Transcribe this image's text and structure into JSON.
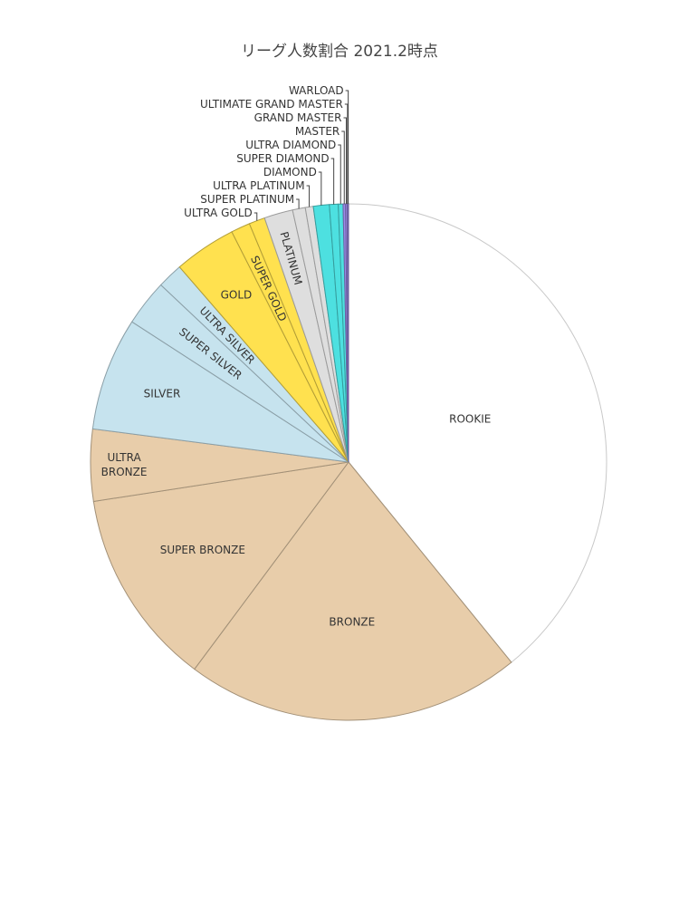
{
  "chart_data": {
    "type": "pie",
    "title": "リーグ人数割合 2021.2時点",
    "direction": "clockwise",
    "start": "12 o'clock",
    "slices": [
      {
        "label": "ROOKIE",
        "value": 39.2,
        "color": "#ffffff"
      },
      {
        "label": "BRONZE",
        "value": 21.1,
        "color": "#e8cdaa"
      },
      {
        "label": "SUPER BRONZE",
        "value": 12.4,
        "color": "#e8cdaa"
      },
      {
        "label": "ULTRA BRONZE",
        "value": 4.5,
        "color": "#e8cdaa"
      },
      {
        "label": "SILVER",
        "value": 7.1,
        "color": "#c6e3ee"
      },
      {
        "label": "SUPER SILVER",
        "value": 2.9,
        "color": "#c6e3ee"
      },
      {
        "label": "ULTRA SILVER",
        "value": 1.6,
        "color": "#c6e3ee"
      },
      {
        "label": "GOLD",
        "value": 3.9,
        "color": "#ffe14f"
      },
      {
        "label": "SUPER GOLD",
        "value": 1.2,
        "color": "#ffe14f"
      },
      {
        "label": "ULTRA GOLD",
        "value": 1.0,
        "color": "#ffe14f"
      },
      {
        "label": "PLATINUM",
        "value": 1.8,
        "color": "#dedede"
      },
      {
        "label": "SUPER PLATINUM",
        "value": 0.8,
        "color": "#dedede"
      },
      {
        "label": "ULTRA PLATINUM",
        "value": 0.5,
        "color": "#dedede"
      },
      {
        "label": "DIAMOND",
        "value": 1.0,
        "color": "#4de0e0"
      },
      {
        "label": "SUPER DIAMOND",
        "value": 0.55,
        "color": "#4de0e0"
      },
      {
        "label": "ULTRA DIAMOND",
        "value": 0.3,
        "color": "#4de0e0"
      },
      {
        "label": "MASTER",
        "value": 0.15,
        "color": "#9b8ae8"
      },
      {
        "label": "GRAND MASTER",
        "value": 0.1,
        "color": "#9b8ae8"
      },
      {
        "label": "ULTIMATE GRAND MASTER",
        "value": 0.05,
        "color": "#9b8ae8"
      },
      {
        "label": "WARLOAD",
        "value": 0.04,
        "color": "#9b8ae8"
      }
    ]
  }
}
